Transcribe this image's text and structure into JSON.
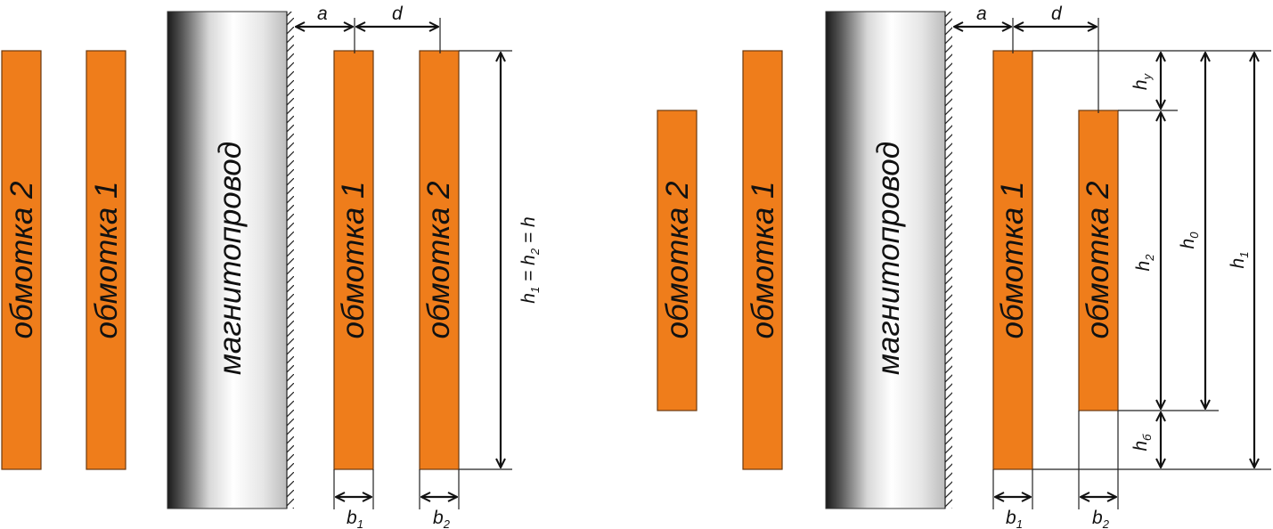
{
  "labels": {
    "winding_1": "обмотка 1",
    "winding_2": "обмотка 2",
    "core": "магнитопровод"
  },
  "dims": {
    "a": "a",
    "d": "d",
    "b": "b",
    "h": "h",
    "eq": " = ",
    "sub_1": "1",
    "sub_2": "2",
    "sub_0": "0",
    "sub_y": "у",
    "sub_b": "б"
  },
  "colors": {
    "winding": "#ef7d1b",
    "outline": "#6b3a10",
    "line": "#111111"
  }
}
